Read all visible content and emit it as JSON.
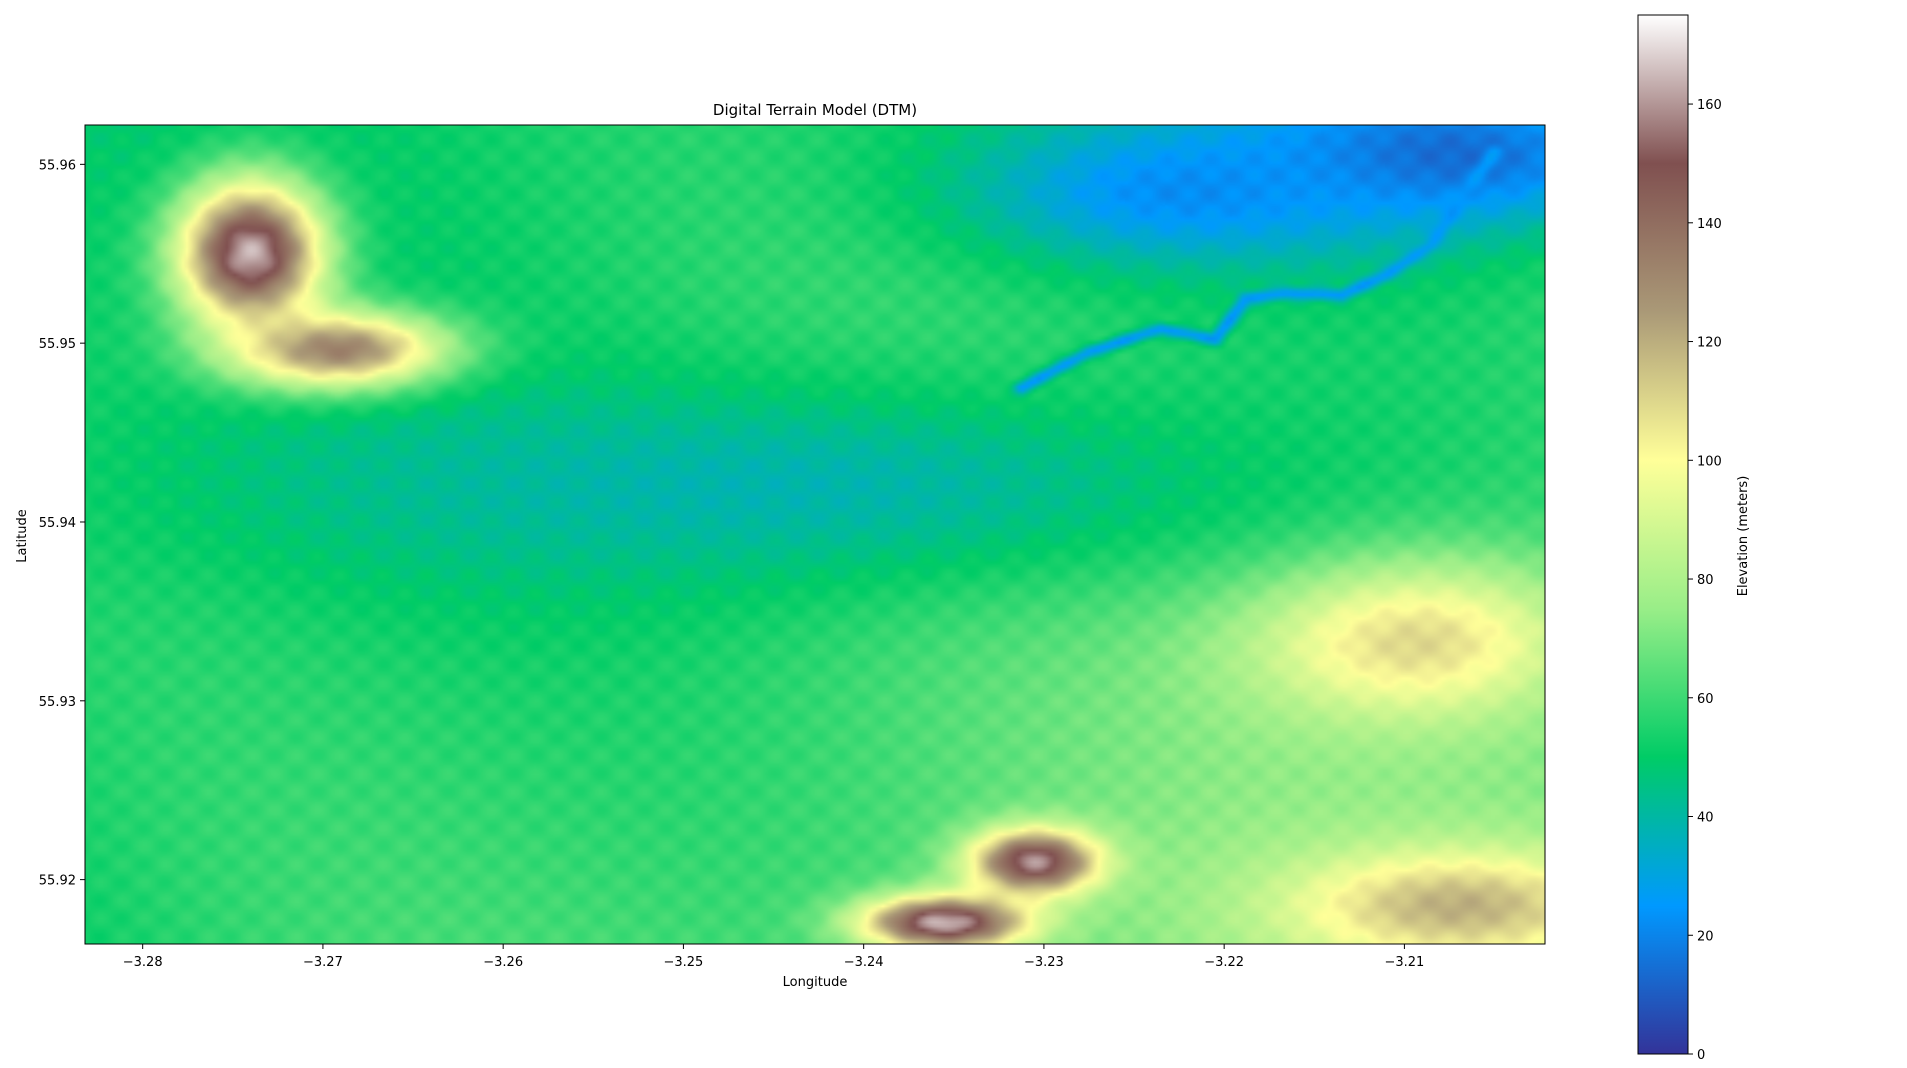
{
  "chart_data": {
    "type": "heatmap",
    "title": "Digital Terrain Model (DTM)",
    "xlabel": "Longitude",
    "ylabel": "Latitude",
    "xlim": [
      -3.2832,
      -3.2022
    ],
    "ylim": [
      55.9164,
      55.9622
    ],
    "x_ticks": [
      -3.28,
      -3.27,
      -3.26,
      -3.25,
      -3.24,
      -3.23,
      -3.22,
      -3.21
    ],
    "x_tick_labels": [
      "−3.28",
      "−3.27",
      "−3.26",
      "−3.25",
      "−3.24",
      "−3.23",
      "−3.22",
      "−3.21"
    ],
    "y_ticks": [
      55.92,
      55.93,
      55.94,
      55.95,
      55.96
    ],
    "y_tick_labels": [
      "55.92",
      "55.93",
      "55.94",
      "55.95",
      "55.96"
    ],
    "grid": false,
    "colormap": "terrain",
    "colorbar": {
      "label": "Elevation (meters)",
      "range": [
        0,
        175
      ],
      "ticks": [
        0,
        20,
        40,
        60,
        80,
        100,
        120,
        140,
        160
      ],
      "tick_labels": [
        "0",
        "20",
        "40",
        "60",
        "80",
        "100",
        "120",
        "140",
        "160"
      ],
      "colors": [
        "#333399",
        "#0099ff",
        "#00cc66",
        "#99ee88",
        "#ffff99",
        "#aa9977",
        "#805050",
        "#ffffff"
      ]
    },
    "features": [
      {
        "name": "ridge",
        "lon": -3.274,
        "lat": 55.955,
        "elevation": 165,
        "spread_lon": 0.004,
        "spread_lat": 0.004
      },
      {
        "name": "ridge",
        "lon": -3.269,
        "lat": 55.9495,
        "elevation": 145,
        "spread_lon": 0.006,
        "spread_lat": 0.0022
      },
      {
        "name": "hill",
        "lon": -3.2305,
        "lat": 55.921,
        "elevation": 160,
        "spread_lon": 0.0035,
        "spread_lat": 0.0018
      },
      {
        "name": "hill",
        "lon": -3.2355,
        "lat": 55.9176,
        "elevation": 165,
        "spread_lon": 0.0045,
        "spread_lat": 0.0015
      },
      {
        "name": "hill",
        "lon": -3.2095,
        "lat": 55.9335,
        "elevation": 112,
        "spread_lon": 0.009,
        "spread_lat": 0.0045
      },
      {
        "name": "hill",
        "lon": -3.207,
        "lat": 55.9185,
        "elevation": 120,
        "spread_lon": 0.009,
        "spread_lat": 0.003
      },
      {
        "name": "lowland",
        "lon": -3.208,
        "lat": 55.9605,
        "elevation": 12,
        "spread_lon": 0.012,
        "spread_lat": 0.004
      },
      {
        "name": "lowland",
        "lon": -3.222,
        "lat": 55.9585,
        "elevation": 22,
        "spread_lon": 0.012,
        "spread_lat": 0.004
      },
      {
        "name": "valley",
        "lon": -3.245,
        "lat": 55.942,
        "elevation": 38,
        "spread_lon": 0.03,
        "spread_lat": 0.006
      }
    ],
    "river": {
      "elevation": 25,
      "lon": [
        -3.2312,
        -3.2275,
        -3.2235,
        -3.2205,
        -3.2188,
        -3.2165,
        -3.2135,
        -3.211,
        -3.2085,
        -3.2068,
        -3.205
      ],
      "lat": [
        55.9475,
        55.9495,
        55.9508,
        55.9502,
        55.9525,
        55.9528,
        55.9527,
        55.9538,
        55.9555,
        55.958,
        55.9607
      ]
    }
  }
}
